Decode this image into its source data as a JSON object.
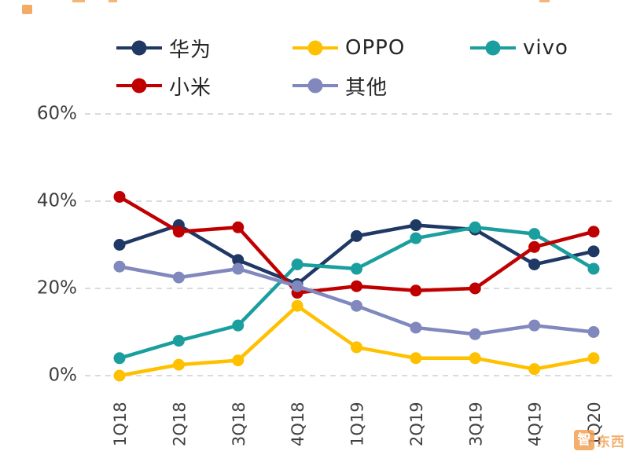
{
  "page": {
    "background": "#ffffff"
  },
  "decorations": {
    "watermark_first_char": "智",
    "watermark_rest": "东西",
    "accent_orange": "#F2A254"
  },
  "chart_data": {
    "type": "line",
    "title": "",
    "categories": [
      "1Q18",
      "2Q18",
      "3Q18",
      "4Q18",
      "1Q19",
      "2Q19",
      "3Q19",
      "4Q19",
      "1Q20"
    ],
    "series": [
      {
        "name": "华为",
        "slug": "huawei",
        "color": "#1F3864",
        "values": [
          30,
          34.5,
          26.5,
          21,
          32,
          34.5,
          33.5,
          25.5,
          28.5
        ]
      },
      {
        "name": "OPPO",
        "slug": "oppo",
        "color": "#FFC000",
        "values": [
          0,
          2.5,
          3.5,
          16,
          6.5,
          4,
          4,
          1.5,
          4
        ]
      },
      {
        "name": "vivo",
        "slug": "vivo",
        "color": "#1A9E9E",
        "values": [
          4,
          8,
          11.5,
          25.5,
          24.5,
          31.5,
          34,
          32.5,
          24.5
        ]
      },
      {
        "name": "小米",
        "slug": "xiaomi",
        "color": "#C00000",
        "values": [
          41,
          33,
          34,
          19,
          20.5,
          19.5,
          20,
          29.5,
          33
        ]
      },
      {
        "name": "其他",
        "slug": "others",
        "color": "#8088BE",
        "values": [
          25,
          22.5,
          24.5,
          20.5,
          16,
          11,
          9.5,
          11.5,
          10
        ]
      }
    ],
    "y_axis": {
      "min": 0,
      "max": 60,
      "ticks": [
        0,
        20,
        40,
        60
      ],
      "tick_labels": [
        "0%",
        "20%",
        "40%",
        "60%"
      ]
    },
    "x_axis": {
      "label_rotation": -90
    },
    "grid": {
      "horizontal": true,
      "style": "dashed",
      "color": "#CFCFCF"
    },
    "legend_position": "top-left, two rows (华为 OPPO vivo / 小米 其他)"
  }
}
